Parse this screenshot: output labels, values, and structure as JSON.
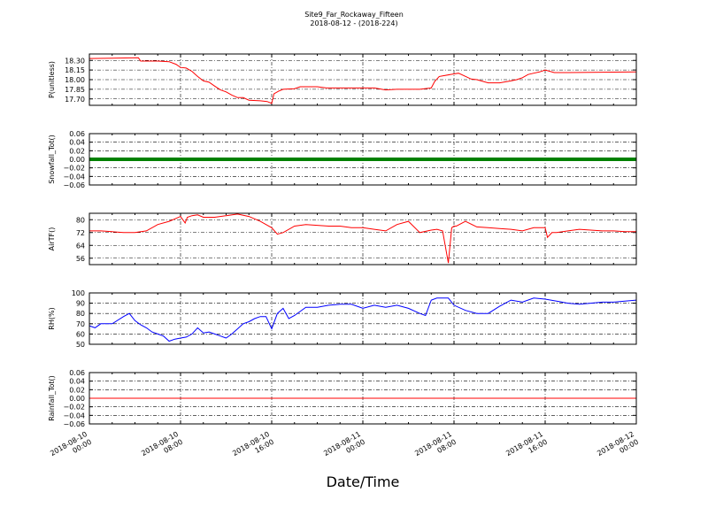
{
  "figure": {
    "title": "Site9_Far_Rockaway_Fifteen",
    "subtitle": "2018-08-12 - (2018-224)",
    "xlabel": "Date/Time"
  },
  "chart_data": [
    {
      "type": "line",
      "ylabel": "P(unitless)",
      "ylim": [
        17.6,
        18.4
      ],
      "yticks": [
        "18.30",
        "18.15",
        "18.00",
        "17.85",
        "17.70"
      ],
      "ytick_values": [
        18.3,
        18.15,
        18.0,
        17.85,
        17.7
      ],
      "grid": true,
      "color": "#ff0000",
      "x_hours": [
        0,
        4.3,
        4.5,
        6,
        7,
        7.6,
        8,
        8.5,
        9,
        9.5,
        10,
        10.5,
        11,
        11.5,
        12,
        12.5,
        13,
        13.5,
        14,
        15,
        15.6,
        16,
        16.2,
        16.6,
        17,
        18,
        18.5,
        20,
        20.8,
        22,
        25,
        26,
        27,
        29,
        30,
        30.3,
        30.7,
        31,
        32,
        32.4,
        33.5,
        34,
        35,
        36,
        37,
        37.5,
        38,
        38.5,
        39,
        39.5,
        40,
        40.8,
        42,
        48
      ],
      "y": [
        18.33,
        18.34,
        18.29,
        18.29,
        18.28,
        18.24,
        18.19,
        18.18,
        18.13,
        18.05,
        17.98,
        17.96,
        17.9,
        17.84,
        17.81,
        17.76,
        17.72,
        17.72,
        17.68,
        17.67,
        17.66,
        17.63,
        17.78,
        17.82,
        17.85,
        17.86,
        17.89,
        17.89,
        17.87,
        17.87,
        17.87,
        17.84,
        17.85,
        17.85,
        17.87,
        17.97,
        18.05,
        18.06,
        18.09,
        18.1,
        18.01,
        18.0,
        17.95,
        17.95,
        17.98,
        18.0,
        18.03,
        18.08,
        18.1,
        18.12,
        18.15,
        18.11,
        18.11,
        18.12
      ]
    },
    {
      "type": "line",
      "ylabel": "Snowfall_Tot()",
      "ylim": [
        -0.06,
        0.06
      ],
      "yticks": [
        "0.06",
        "0.04",
        "0.02",
        "0.00",
        "−0.02",
        "−0.04",
        "−0.06"
      ],
      "ytick_values": [
        0.06,
        0.04,
        0.02,
        0.0,
        -0.02,
        -0.04,
        -0.06
      ],
      "grid": true,
      "color": "#008000",
      "markers": true,
      "x_hours": [
        0,
        48
      ],
      "y": [
        0.0,
        0.0
      ]
    },
    {
      "type": "line",
      "ylabel": "AirTF()",
      "ylim": [
        52,
        84
      ],
      "yticks": [
        "80",
        "72",
        "64",
        "56"
      ],
      "ytick_values": [
        80,
        72,
        64,
        56
      ],
      "grid": true,
      "color": "#ff0000",
      "x_hours": [
        0,
        1,
        2,
        3,
        4,
        5,
        6,
        7,
        8,
        8.4,
        8.6,
        9,
        9.5,
        10,
        11,
        12,
        13,
        14,
        15,
        16,
        16.5,
        17,
        18,
        19,
        20,
        21,
        22,
        23,
        24,
        25,
        26,
        27,
        28,
        29,
        30,
        30.5,
        31,
        31.5,
        31.8,
        32,
        32.2,
        33,
        34,
        35,
        36,
        37,
        38,
        39,
        40,
        40.2,
        40.6,
        41,
        42,
        43,
        44,
        45,
        46,
        47,
        48
      ],
      "y": [
        73,
        73,
        72.5,
        72,
        72,
        73,
        77,
        79,
        82,
        78,
        81.5,
        82.5,
        83,
        81.5,
        81.5,
        82.5,
        83.5,
        82,
        79,
        75,
        71,
        72,
        76,
        77,
        76.5,
        76,
        76,
        75,
        75,
        74,
        73,
        77,
        79,
        72,
        73.5,
        74,
        73,
        53,
        75,
        76,
        76,
        79,
        75.5,
        75,
        74.5,
        74,
        73,
        75,
        75,
        69,
        72,
        72,
        73,
        74,
        73.5,
        73,
        73,
        72.5,
        72.5
      ]
    },
    {
      "type": "line",
      "ylabel": "RH(%)",
      "ylim": [
        50,
        100
      ],
      "yticks": [
        "100",
        "90",
        "80",
        "70",
        "60",
        "50"
      ],
      "ytick_values": [
        100,
        90,
        80,
        70,
        60,
        50
      ],
      "grid": true,
      "color": "#0000ff",
      "x_hours": [
        0,
        0.5,
        1,
        2,
        3,
        3.5,
        4,
        4.5,
        5,
        5.5,
        6,
        6.5,
        7,
        7.5,
        8,
        8.5,
        9,
        9.5,
        10,
        10.5,
        11,
        11.5,
        12,
        12.5,
        13,
        13.5,
        14,
        14.5,
        15,
        15.5,
        16,
        16.5,
        17,
        17.5,
        18,
        18.5,
        19,
        20,
        21,
        22,
        23,
        24,
        25,
        26,
        27,
        28,
        29,
        29.5,
        30,
        30.5,
        31,
        31.5,
        32,
        33,
        34,
        35,
        36,
        37,
        38,
        39,
        40,
        41,
        42,
        43,
        44,
        45,
        46,
        47,
        48
      ],
      "y": [
        68,
        66,
        70,
        70,
        77,
        80,
        73,
        69,
        66,
        62,
        60,
        58,
        53,
        55,
        56,
        57,
        60,
        66,
        61,
        62,
        60,
        58,
        56,
        60,
        65,
        70,
        72,
        75,
        77,
        77,
        65,
        80,
        85,
        75,
        78,
        82,
        86,
        86,
        88,
        89,
        89,
        85,
        88,
        86,
        88,
        85,
        80,
        78,
        93,
        95,
        95,
        95,
        88,
        83,
        80,
        80,
        87,
        93,
        91,
        95,
        94,
        92,
        90,
        89,
        90,
        91,
        91,
        92,
        93
      ]
    },
    {
      "type": "line",
      "ylabel": "Rainfall_Tot()",
      "ylim": [
        -0.06,
        0.06
      ],
      "yticks": [
        "0.06",
        "0.04",
        "0.02",
        "0.00",
        "−0.02",
        "−0.04",
        "−0.06"
      ],
      "ytick_values": [
        0.06,
        0.04,
        0.02,
        0.0,
        -0.02,
        -0.04,
        -0.06
      ],
      "grid": true,
      "color": "#ff0000",
      "x_hours": [
        0,
        48
      ],
      "y": [
        0.0,
        0.0
      ]
    }
  ],
  "x_axis": {
    "tick_hours": [
      0,
      8,
      16,
      24,
      32,
      40,
      48
    ],
    "tick_labels": [
      [
        "2018-08-10",
        "00:00"
      ],
      [
        "2018-08-10",
        "08:00"
      ],
      [
        "2018-08-10",
        "16:00"
      ],
      [
        "2018-08-11",
        "00:00"
      ],
      [
        "2018-08-11",
        "08:00"
      ],
      [
        "2018-08-11",
        "16:00"
      ],
      [
        "2018-08-12",
        "00:00"
      ]
    ]
  }
}
